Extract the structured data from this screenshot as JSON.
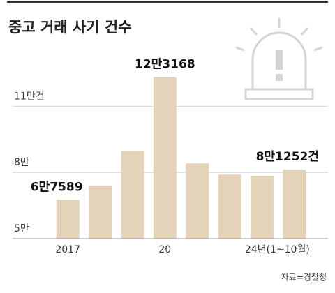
{
  "chart_data": {
    "type": "bar",
    "title": "중고 거래 사기 건수",
    "categories": [
      "2017",
      null,
      null,
      "20",
      null,
      null,
      null,
      "24년(1~10월)"
    ],
    "values": [
      67589,
      74000,
      89800,
      123168,
      84100,
      79000,
      78400,
      81252
    ],
    "value_labels": [
      "6만7589",
      null,
      null,
      "12만3168",
      null,
      null,
      null,
      "8만1252건"
    ],
    "color": "#e5d3b9",
    "ylim": [
      50000,
      130000
    ],
    "yticks": [
      {
        "value": 50000,
        "label": "5만"
      },
      {
        "value": 80000,
        "label": "8만"
      },
      {
        "value": 110000,
        "label": "11만건"
      }
    ],
    "grid": true,
    "source": "자료=경찰청"
  }
}
